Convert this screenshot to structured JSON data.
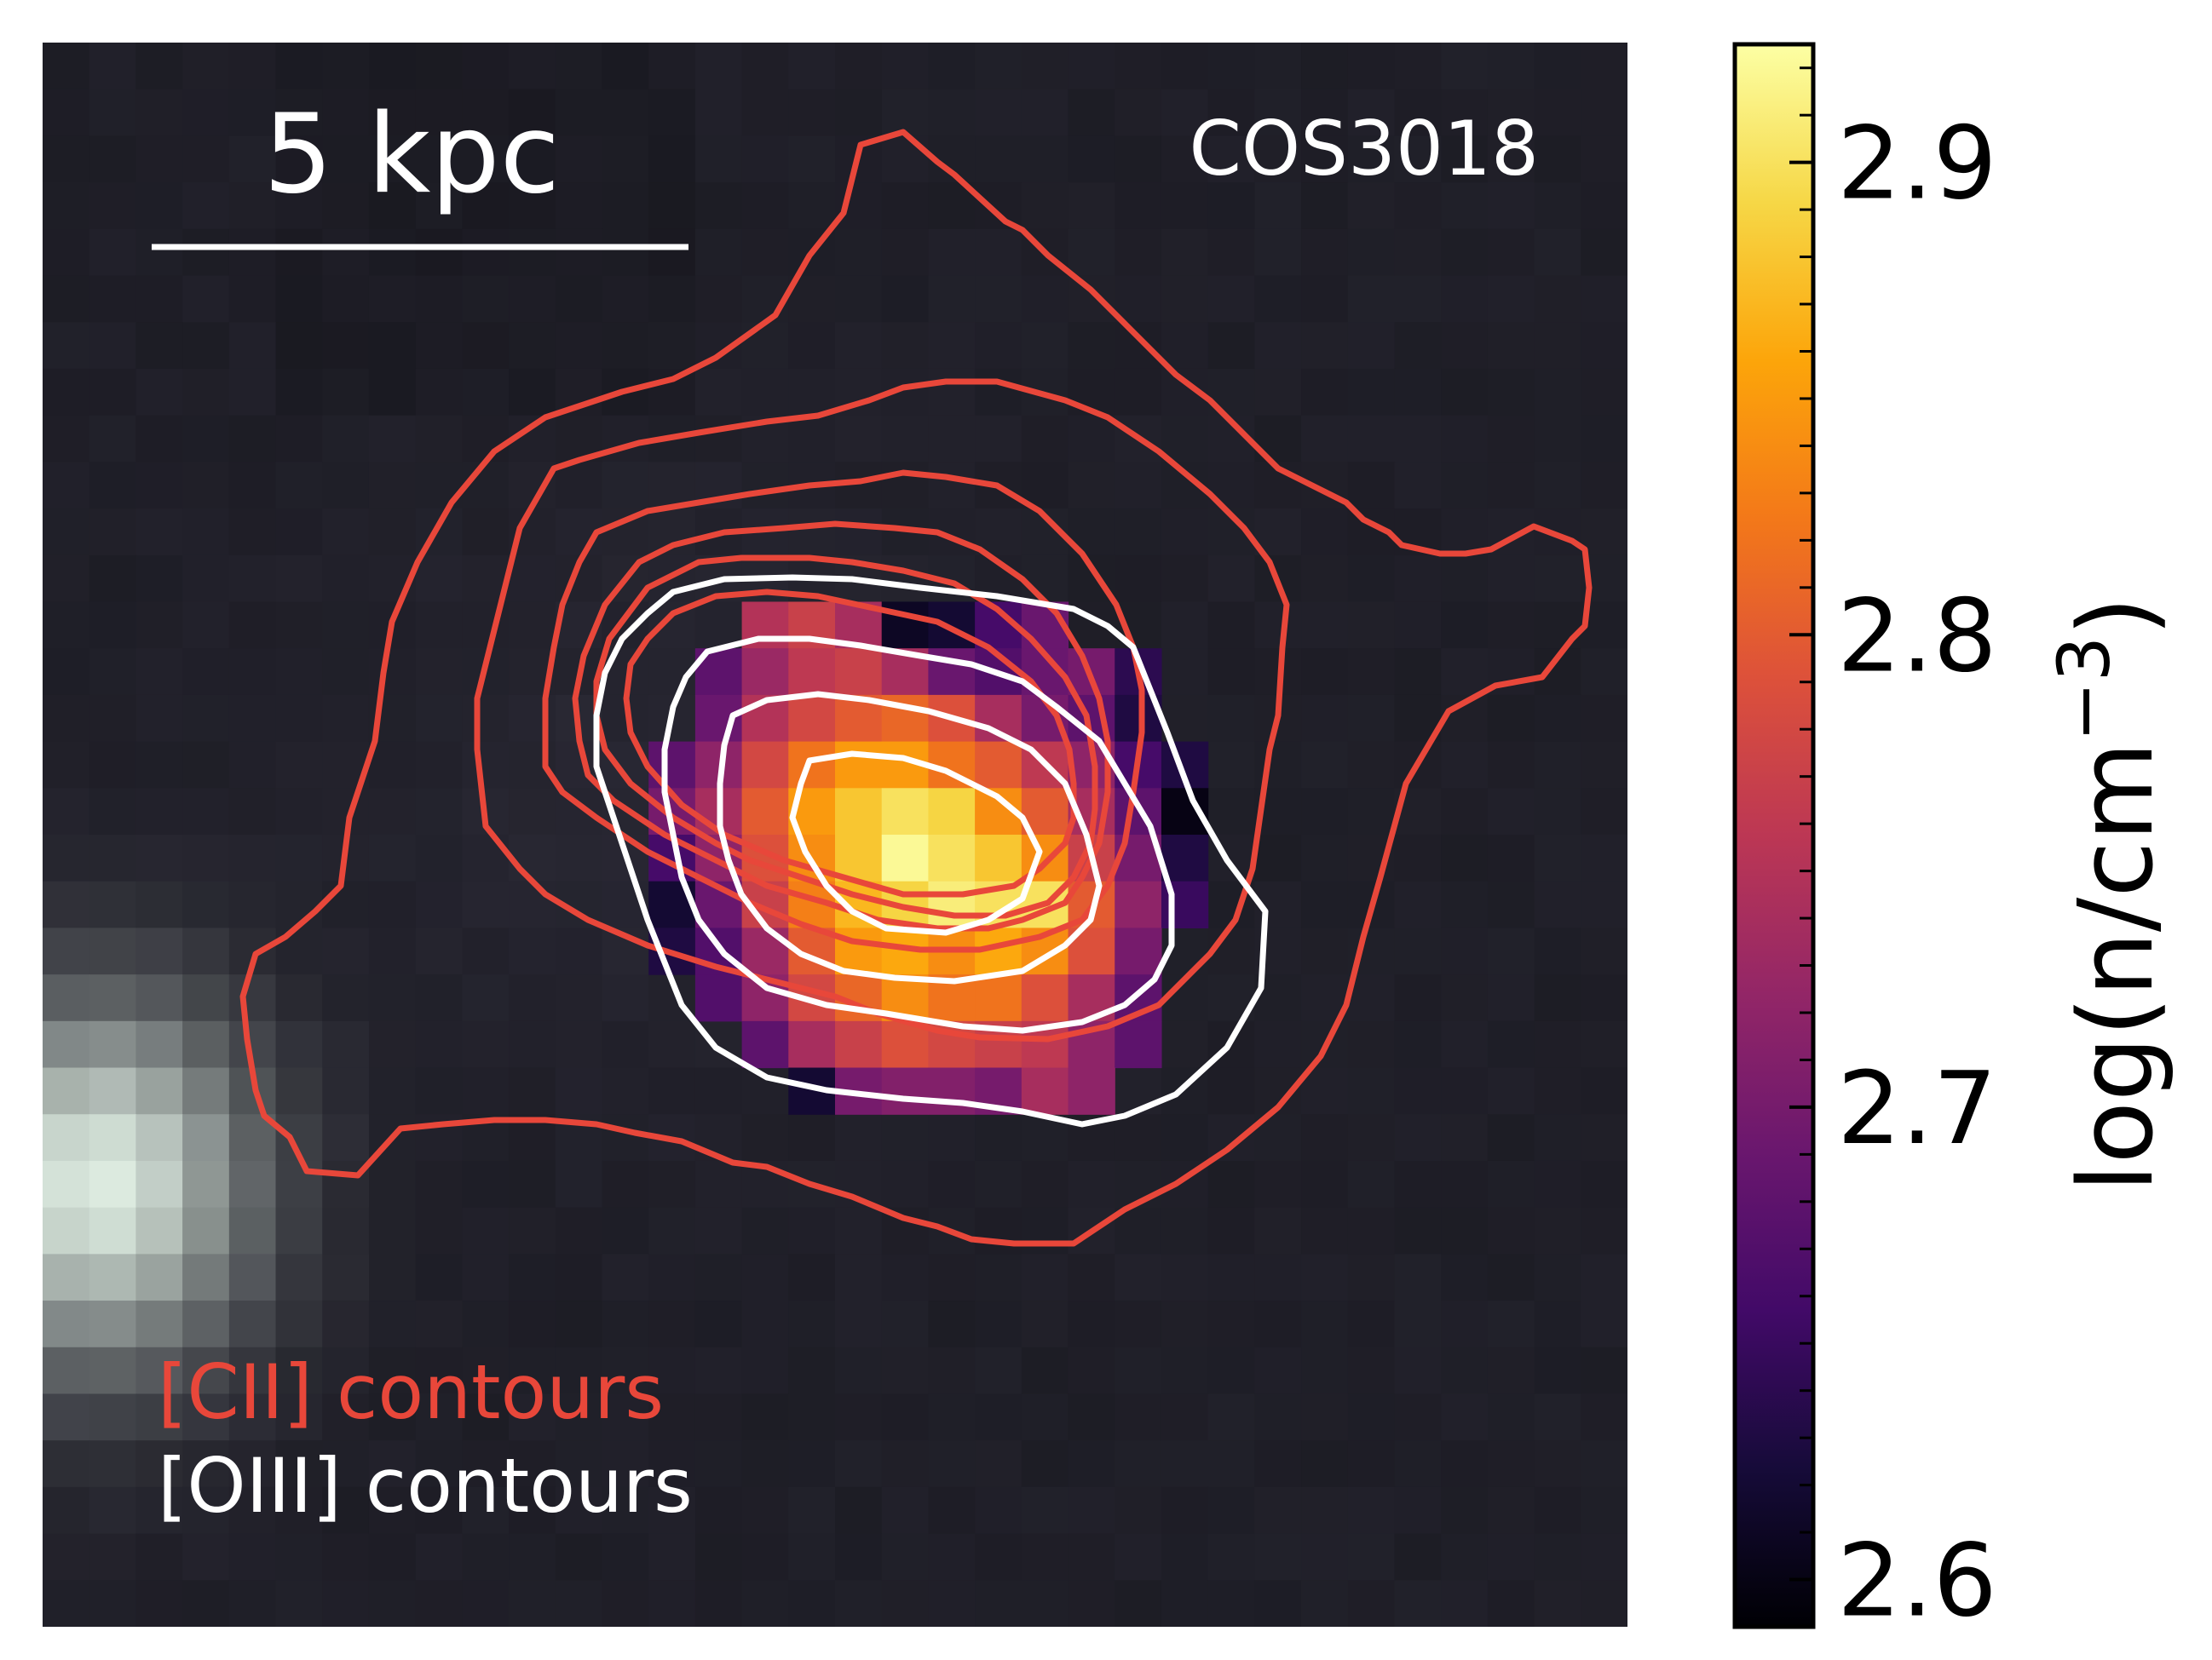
{
  "chart_data": {
    "type": "heatmap",
    "title": "COS3018",
    "colorbar": {
      "label": "log(n/cm",
      "label_exponent": "−3",
      "label_close": ")",
      "range": [
        2.59,
        2.925
      ],
      "ticks": [
        2.9,
        2.8,
        2.7,
        2.6
      ],
      "tick_labels": [
        "2.9",
        "2.8",
        "2.7",
        "2.6"
      ],
      "colormap": "inferno"
    },
    "scale_bar": {
      "label": "5 kpc",
      "length_kpc": 5
    },
    "legend": [
      {
        "name": "[CII] contours",
        "color": "#e8473a"
      },
      {
        "name": "[OIII] contours",
        "color": "#ffffff"
      }
    ],
    "density_grid_origin": [
      12,
      12
    ],
    "density_grid": [
      [
        null,
        null,
        null,
        2.75,
        2.77,
        2.74,
        2.61,
        2.62,
        2.66,
        2.69,
        null,
        null,
        null,
        null
      ],
      [
        null,
        null,
        2.68,
        2.73,
        2.76,
        2.77,
        2.74,
        2.69,
        2.67,
        2.69,
        2.7,
        2.64,
        null,
        null
      ],
      [
        null,
        null,
        2.69,
        2.75,
        2.78,
        2.8,
        2.81,
        2.79,
        2.74,
        2.7,
        2.68,
        2.63,
        null,
        null
      ],
      [
        null,
        2.68,
        2.72,
        2.78,
        2.82,
        2.85,
        2.85,
        2.82,
        2.8,
        2.76,
        2.72,
        2.66,
        2.63,
        null
      ],
      [
        null,
        2.7,
        2.74,
        2.8,
        2.85,
        2.88,
        2.9,
        2.89,
        2.84,
        2.8,
        2.74,
        2.68,
        2.6,
        null
      ],
      [
        null,
        2.66,
        2.72,
        2.79,
        2.84,
        2.88,
        2.92,
        2.9,
        2.88,
        2.84,
        2.77,
        2.7,
        2.63,
        null
      ],
      [
        null,
        2.62,
        2.69,
        2.77,
        2.83,
        2.87,
        2.89,
        2.91,
        2.9,
        2.9,
        2.8,
        2.72,
        2.65,
        null
      ],
      [
        null,
        2.63,
        2.67,
        2.73,
        2.8,
        2.85,
        2.86,
        2.84,
        2.86,
        2.84,
        2.79,
        2.7,
        null,
        null
      ],
      [
        null,
        null,
        2.67,
        2.72,
        2.78,
        2.81,
        2.84,
        2.82,
        2.82,
        2.79,
        2.74,
        2.68,
        null,
        null
      ],
      [
        null,
        null,
        null,
        2.68,
        2.74,
        2.77,
        2.79,
        2.78,
        2.77,
        2.76,
        2.72,
        2.68,
        null,
        null
      ],
      [
        null,
        null,
        null,
        null,
        2.62,
        2.7,
        2.71,
        2.71,
        2.7,
        2.74,
        2.72,
        null,
        null,
        null
      ]
    ]
  },
  "colors": {
    "cii": "#e8473a",
    "oiii": "#ffffff",
    "background": "#1c1b22"
  }
}
